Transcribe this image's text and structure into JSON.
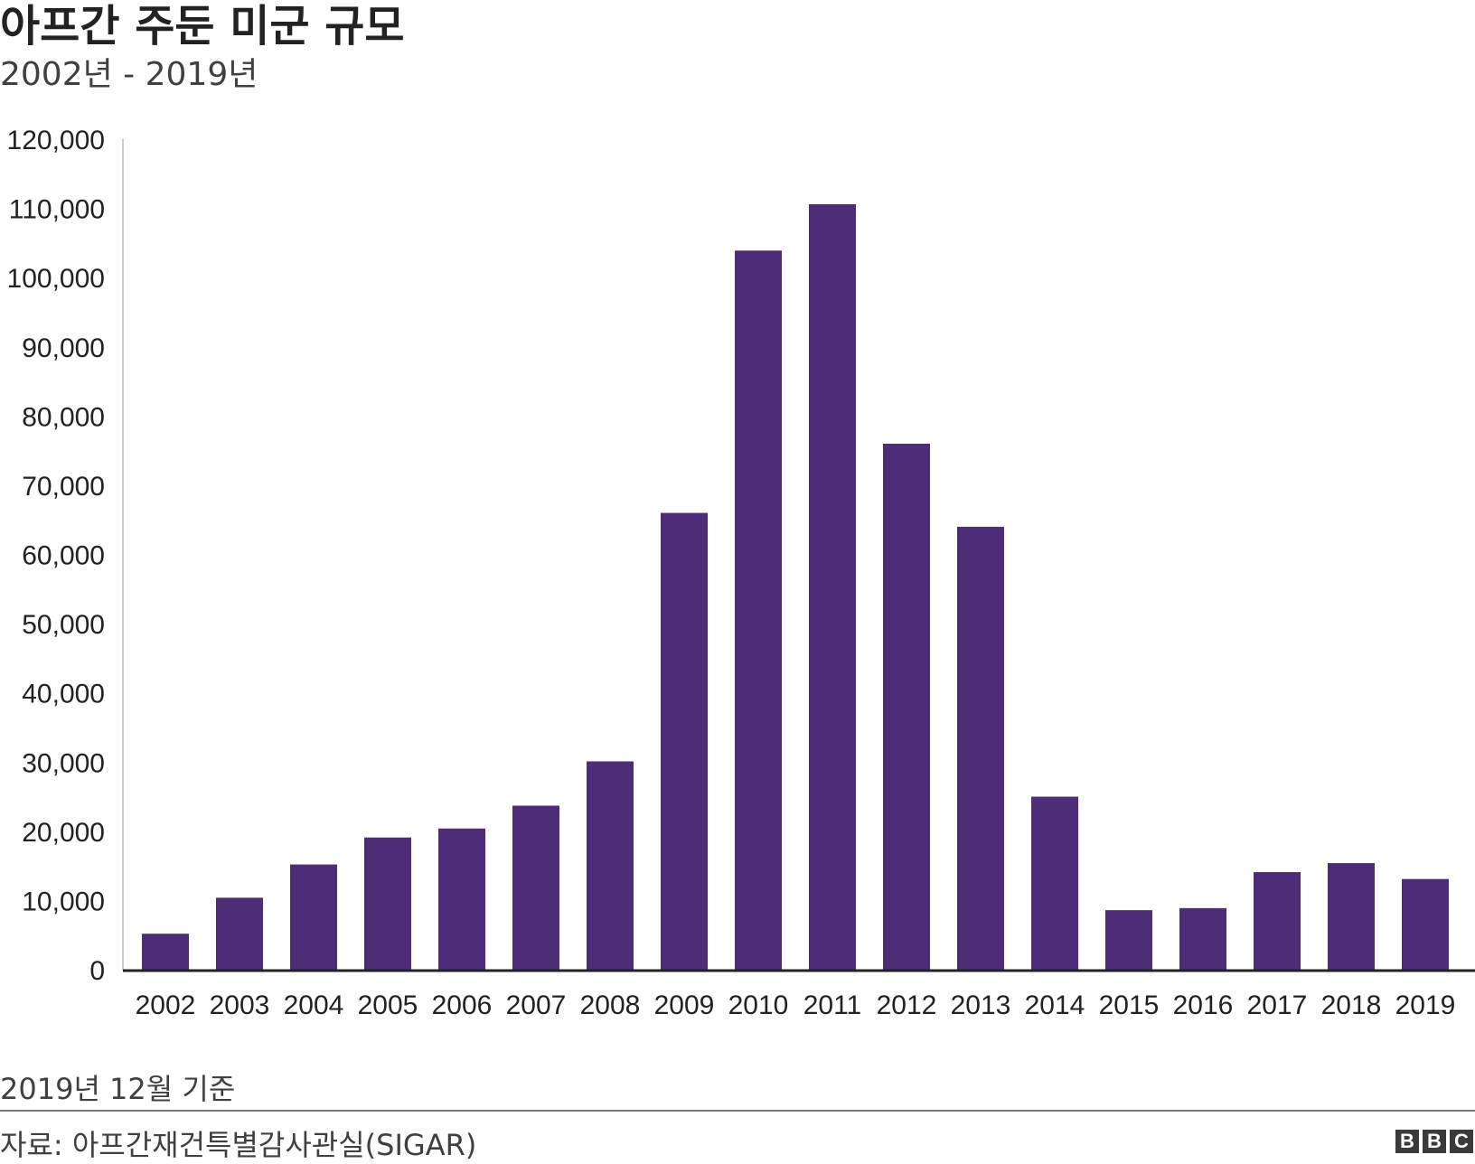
{
  "title": "아프간 주둔 미군 규모",
  "subtitle": "2002년 - 2019년",
  "note": "2019년 12월 기준",
  "source": "자료: 아프간재건특별감사관실(SIGAR)",
  "logo": {
    "letters": [
      "B",
      "B",
      "C"
    ]
  },
  "colors": {
    "bar": "#4e2d78",
    "axis": "#222222",
    "gridline": "#cccccc"
  },
  "chart_data": {
    "type": "bar",
    "title": "아프간 주둔 미군 규모",
    "subtitle": "2002년 - 2019년",
    "xlabel": "",
    "ylabel": "",
    "ylim": [
      0,
      120000
    ],
    "yticks": [
      0,
      10000,
      20000,
      30000,
      40000,
      50000,
      60000,
      70000,
      80000,
      90000,
      100000,
      110000,
      120000
    ],
    "ytick_labels": [
      "0",
      "10,000",
      "20,000",
      "30,000",
      "40,000",
      "50,000",
      "60,000",
      "70,000",
      "80,000",
      "90,000",
      "100,000",
      "110,000",
      "120,000"
    ],
    "categories": [
      "2002",
      "2003",
      "2004",
      "2005",
      "2006",
      "2007",
      "2008",
      "2009",
      "2010",
      "2011",
      "2012",
      "2013",
      "2014",
      "2015",
      "2016",
      "2017",
      "2018",
      "2019"
    ],
    "values": [
      5200,
      10400,
      15200,
      19100,
      20400,
      23700,
      30100,
      66000,
      103900,
      110600,
      76000,
      64000,
      25000,
      8600,
      8900,
      14100,
      15400,
      13100
    ],
    "grid": false,
    "legend": "none"
  }
}
